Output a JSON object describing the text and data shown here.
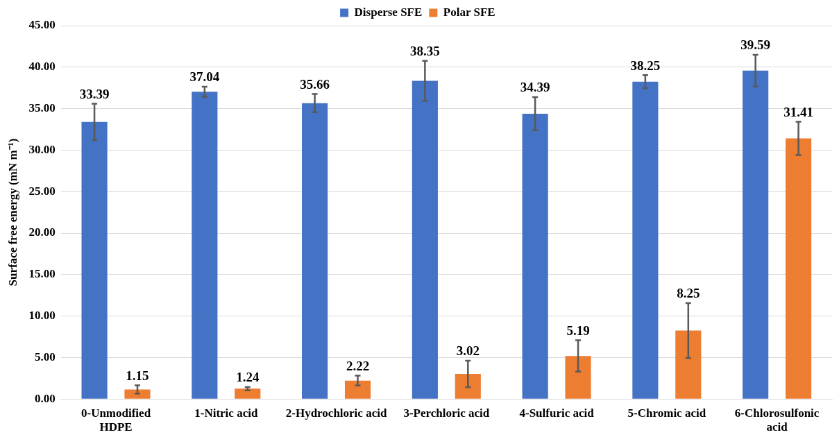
{
  "chart_data": {
    "type": "bar",
    "ylabel": "Surface free energy (mN m⁻¹)",
    "categories": [
      "0-Unmodified HDPE",
      "1-Nitric acid",
      "2-Hydrochloric acid",
      "3-Perchloric acid",
      "4-Sulfuric acid",
      "5-Chromic acid",
      "6-Chlorosulfonic acid"
    ],
    "series": [
      {
        "name": "Disperse SFE",
        "color": "#4472c4",
        "values": [
          33.39,
          37.04,
          35.66,
          38.35,
          34.39,
          38.25,
          39.59
        ],
        "errors": [
          2.2,
          0.6,
          1.1,
          2.4,
          2.0,
          0.8,
          1.9
        ]
      },
      {
        "name": "Polar SFE",
        "color": "#ed7d31",
        "values": [
          1.15,
          1.24,
          2.22,
          3.02,
          5.19,
          8.25,
          31.41
        ],
        "errors": [
          0.5,
          0.2,
          0.6,
          1.6,
          1.9,
          3.3,
          2.0
        ]
      }
    ],
    "ylim": [
      0,
      45
    ],
    "yticks": [
      {
        "value": 0,
        "label": "0.00"
      },
      {
        "value": 5,
        "label": "5.00"
      },
      {
        "value": 10,
        "label": "10.00"
      },
      {
        "value": 15,
        "label": "15.00"
      },
      {
        "value": 20,
        "label": "20.00"
      },
      {
        "value": 25,
        "label": "25.00"
      },
      {
        "value": 30,
        "label": "30.00"
      },
      {
        "value": 35,
        "label": "35.00"
      },
      {
        "value": 40,
        "label": "40.00"
      },
      {
        "value": 45,
        "label": "45.00"
      }
    ],
    "grid": "y",
    "legend": "top",
    "data_labels": true
  }
}
